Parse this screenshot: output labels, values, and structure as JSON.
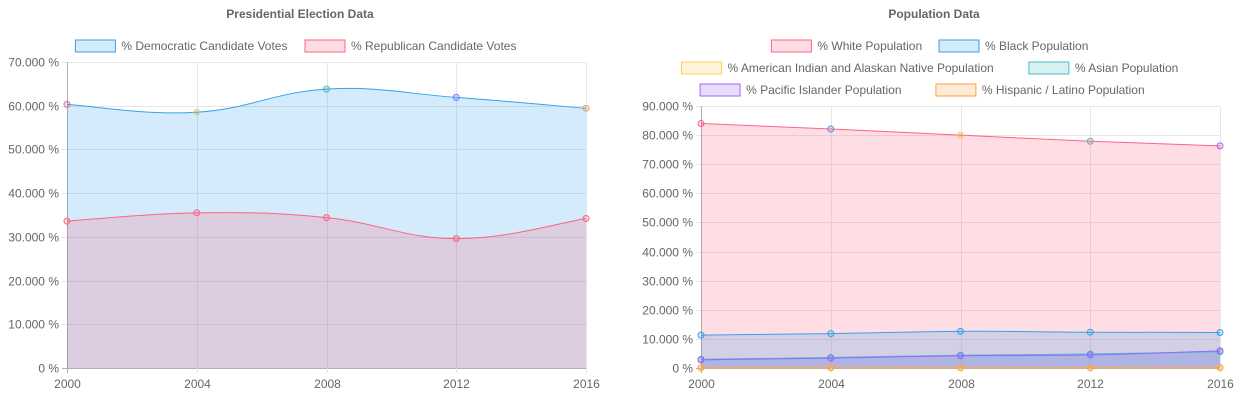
{
  "chart_data": [
    {
      "type": "area",
      "title": "Presidential Election Data",
      "xlabel": "",
      "ylabel": "",
      "x": [
        "2000",
        "2004",
        "2008",
        "2012",
        "2016"
      ],
      "ylim": [
        0,
        70
      ],
      "y_ticks": [
        "0 %",
        "10.000 %",
        "20.000 %",
        "30.000 %",
        "40.000 %",
        "50.000 %",
        "60.000 %",
        "70.000 %"
      ],
      "y_tick_values": [
        0,
        10,
        20,
        30,
        40,
        50,
        60,
        70
      ],
      "grid": true,
      "legend_position": "top",
      "series": [
        {
          "name": "% Democratic Candidate Votes",
          "values": [
            60.3,
            58.5,
            63.8,
            61.9,
            59.4
          ],
          "line_color": "#36a2eb",
          "fill_color": "rgba(54,162,235,0.22)",
          "point_colors": [
            "#ff6384",
            "#ffce56",
            "#4bc0c0",
            "#9966ff",
            "#ff9f40"
          ]
        },
        {
          "name": "% Republican Candidate Votes",
          "values": [
            33.6,
            35.5,
            34.4,
            29.6,
            34.2
          ],
          "line_color": "#ff6384",
          "fill_color": "rgba(255,99,132,0.22)",
          "point_colors": [
            "#ff6384",
            "#ff6384",
            "#ff6384",
            "#ff6384",
            "#ff6384"
          ]
        }
      ]
    },
    {
      "type": "area",
      "title": "Population Data",
      "xlabel": "",
      "ylabel": "",
      "x": [
        "2000",
        "2004",
        "2008",
        "2012",
        "2016"
      ],
      "ylim": [
        0,
        90
      ],
      "y_ticks": [
        "0 %",
        "10.000 %",
        "20.000 %",
        "30.000 %",
        "40.000 %",
        "50.000 %",
        "60.000 %",
        "70.000 %",
        "80.000 %",
        "90.000 %"
      ],
      "y_tick_values": [
        0,
        10,
        20,
        30,
        40,
        50,
        60,
        70,
        80,
        90
      ],
      "grid": true,
      "legend_position": "top",
      "series": [
        {
          "name": "% White Population",
          "values": [
            84.0,
            82.1,
            80.0,
            77.9,
            76.3
          ],
          "line_color": "#ff6384",
          "fill_color": "rgba(255,99,132,0.22)",
          "point_colors": [
            "#ff6384",
            "#36a2eb",
            "#ffce56",
            "#4bc0c0",
            "#9966ff"
          ]
        },
        {
          "name": "% Black Population",
          "values": [
            11.3,
            11.8,
            12.6,
            12.3,
            12.2
          ],
          "line_color": "#36a2eb",
          "fill_color": "rgba(54,162,235,0.22)",
          "point_colors": [
            "#36a2eb",
            "#36a2eb",
            "#36a2eb",
            "#36a2eb",
            "#36a2eb"
          ]
        },
        {
          "name": "% American Indian and Alaskan Native Population",
          "values": [
            0.1,
            0.1,
            0.1,
            0.1,
            0.1
          ],
          "line_color": "#ffce56",
          "fill_color": "rgba(255,206,86,0.22)",
          "point_colors": [
            "#ffce56",
            "#ffce56",
            "#ffce56",
            "#ffce56",
            "#ffce56"
          ]
        },
        {
          "name": "% Asian Population",
          "values": [
            3.0,
            3.6,
            4.4,
            4.8,
            5.6
          ],
          "line_color": "#4bc0c0",
          "fill_color": "rgba(75,192,192,0.22)",
          "point_colors": [
            "#4bc0c0",
            "#4bc0c0",
            "#4bc0c0",
            "#4bc0c0",
            "#4bc0c0"
          ]
        },
        {
          "name": "% Pacific Islander Population",
          "values": [
            2.8,
            3.4,
            4.2,
            4.5,
            5.9
          ],
          "line_color": "#9966ff",
          "fill_color": "rgba(153,102,255,0.22)",
          "point_colors": [
            "#9966ff",
            "#9966ff",
            "#9966ff",
            "#9966ff",
            "#9966ff"
          ]
        },
        {
          "name": "% Hispanic / Latino Population",
          "values": [
            0.1,
            0.1,
            0.1,
            0.1,
            0.1
          ],
          "line_color": "#ff9f40",
          "fill_color": "rgba(255,159,64,0.22)",
          "point_colors": [
            "#ff9f40",
            "#ff9f40",
            "#ff9f40",
            "#ff9f40",
            "#ff9f40"
          ]
        }
      ]
    }
  ]
}
